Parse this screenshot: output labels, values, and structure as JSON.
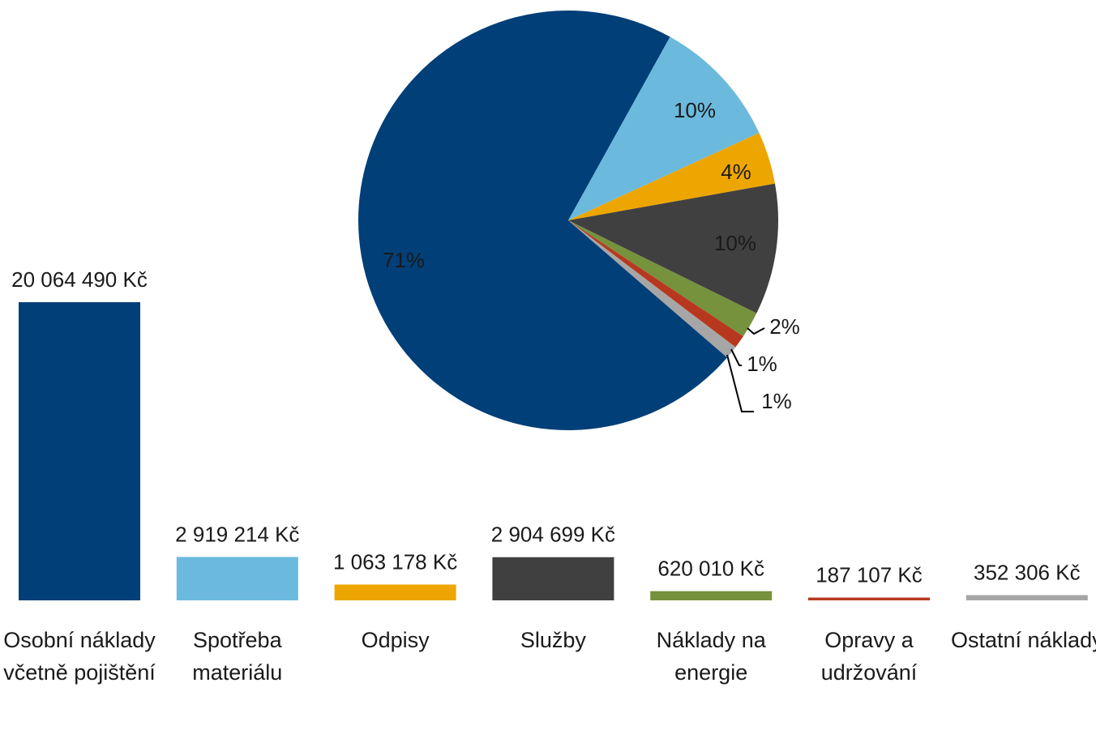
{
  "chart_data": [
    {
      "type": "bar",
      "categories": [
        "Osobní náklady včetně pojištění",
        "Spotřeba materiálu",
        "Odpisy",
        "Služby",
        "Náklady na energie",
        "Opravy a udržování",
        "Ostatní náklady"
      ],
      "values": [
        20064490,
        2919214,
        1063178,
        2904699,
        620010,
        187107,
        352306
      ],
      "value_labels": [
        "20 064 490 Kč",
        "2 919 214 Kč",
        "1 063 178 Kč",
        "2 904 699 Kč",
        "620 010 Kč",
        "187 107 Kč",
        "352 306 Kč"
      ],
      "colors": [
        "#003f78",
        "#6bbade",
        "#eda600",
        "#404040",
        "#76923c",
        "#b7381f",
        "#a6a6a6"
      ]
    },
    {
      "type": "pie",
      "values": [
        71,
        10,
        4,
        10,
        2,
        1,
        1
      ],
      "value_labels": [
        "71%",
        "10%",
        "4%",
        "10%",
        "2%",
        "1%",
        "1%"
      ],
      "colors": [
        "#003f78",
        "#6bbade",
        "#eda600",
        "#404040",
        "#76923c",
        "#b7381f",
        "#a6a6a6"
      ]
    }
  ]
}
